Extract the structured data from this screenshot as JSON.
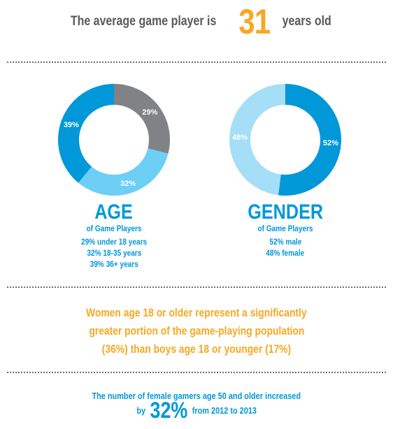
{
  "headline": {
    "prefix": "The average game player is",
    "number": "31",
    "suffix": "years old"
  },
  "colors": {
    "blue": "#0098d8",
    "light_blue": "#a5def7",
    "mid_blue": "#6dcff6",
    "gray": "#808285",
    "orange": "#f7a823"
  },
  "age": {
    "title": "AGE",
    "subtitle": "of Game Players",
    "lines": [
      "29% under 18 years",
      "32% 18-35 years",
      "39% 36+ years"
    ]
  },
  "gender": {
    "title": "GENDER",
    "subtitle": "of Game Players",
    "lines": [
      "52% male",
      "48% female"
    ]
  },
  "chart_data": [
    {
      "type": "pie",
      "title": "AGE",
      "categories": [
        "under 18 years",
        "18-35 years",
        "36+ years"
      ],
      "values": [
        29,
        32,
        39
      ],
      "labels": [
        "29%",
        "32%",
        "39%"
      ],
      "colors": [
        "#808285",
        "#6dcff6",
        "#0098d8"
      ],
      "donut": true
    },
    {
      "type": "pie",
      "title": "GENDER",
      "categories": [
        "male",
        "female"
      ],
      "values": [
        52,
        48
      ],
      "labels": [
        "52%",
        "48%"
      ],
      "colors": [
        "#0098d8",
        "#a5def7"
      ],
      "donut": true
    }
  ],
  "women_stat": {
    "line1": "Women age 18 or older represent a significantly",
    "line2": "greater portion of the game-playing population",
    "line3": "(36%) than boys age 18 or younger (17%)"
  },
  "fifty_stat": {
    "line1": "The number of female gamers age 50 and older increased",
    "prefix": "by",
    "number": "32%",
    "suffix": "from 2012 to 2013"
  }
}
